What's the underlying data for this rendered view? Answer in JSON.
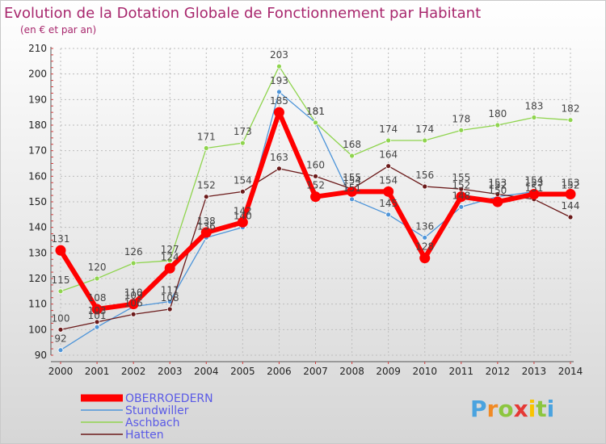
{
  "chart_data": {
    "type": "line",
    "title": "Evolution de la Dotation Globale de Fonctionnement par Habitant",
    "subtitle": "(en € et par an)",
    "x": [
      "2000",
      "2001",
      "2002",
      "2003",
      "2004",
      "2005",
      "2006",
      "2007",
      "2008",
      "2009",
      "2010",
      "2011",
      "2012",
      "2013",
      "2014"
    ],
    "ylim": [
      90,
      210
    ],
    "yticks": [
      "90",
      "100",
      "110",
      "120",
      "130",
      "140",
      "150",
      "160",
      "170",
      "180",
      "190",
      "200",
      "210"
    ],
    "series": [
      {
        "name": "OBERROEDERN",
        "color": "#ff0000",
        "values": [
          131,
          108,
          110,
          124,
          138,
          142,
          185,
          152,
          154,
          154,
          128,
          152,
          150,
          153,
          153
        ],
        "labels": [
          "131",
          "108",
          "110",
          "124",
          "138",
          "142",
          "185",
          "152",
          "154",
          "154",
          "128",
          "152",
          "150",
          "153",
          "153"
        ]
      },
      {
        "name": "Stundwiller",
        "color": "#4e95d9",
        "values": [
          92,
          101,
          109,
          111,
          136,
          140,
          193,
          181,
          151,
          145,
          136,
          148,
          152,
          154,
          152
        ],
        "labels": [
          "92",
          "101",
          "109",
          "111",
          "136",
          "140",
          "193",
          "181",
          "151",
          "145",
          "136",
          "148",
          "152",
          "154",
          "152"
        ]
      },
      {
        "name": "Aschbach",
        "color": "#8fd44e",
        "values": [
          115,
          120,
          126,
          127,
          171,
          173,
          203,
          181,
          168,
          174,
          174,
          178,
          180,
          183,
          182
        ],
        "labels": [
          "115",
          "120",
          "126",
          "127",
          "171",
          "173",
          "203",
          "181",
          "168",
          "174",
          "174",
          "178",
          "180",
          "183",
          "182"
        ]
      },
      {
        "name": "Hatten",
        "color": "#6b1a1a",
        "values": [
          100,
          103,
          106,
          108,
          152,
          154,
          163,
          160,
          155,
          164,
          156,
          155,
          153,
          151,
          144
        ],
        "labels": [
          "100",
          "103",
          "106",
          "108",
          "152",
          "154",
          "163",
          "160",
          "155",
          "164",
          "156",
          "155",
          "153",
          "151",
          "144"
        ]
      }
    ]
  },
  "logo": {
    "text": "Proxiti"
  }
}
